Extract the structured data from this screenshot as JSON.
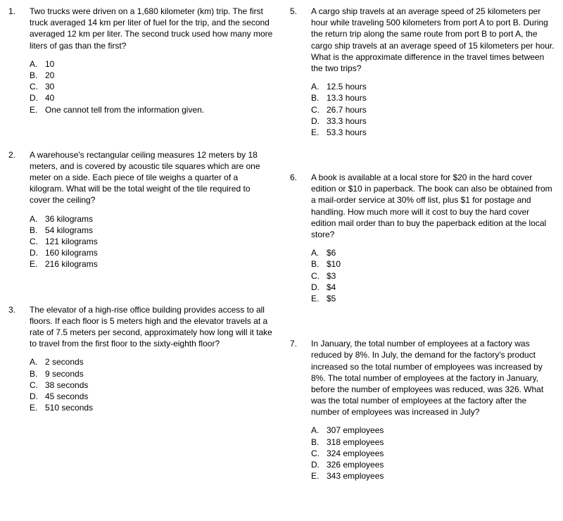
{
  "columns": [
    {
      "questions": [
        {
          "number": "1.",
          "text": "Two trucks were driven on a 1,680 kilometer (km) trip. The first truck averaged 14 km per liter of fuel for the trip, and the second averaged 12 km per liter.  The second truck used how many more liters of gas than the first?",
          "choices": [
            {
              "letter": "A.",
              "text": "10"
            },
            {
              "letter": "B.",
              "text": "20"
            },
            {
              "letter": "C.",
              "text": "30"
            },
            {
              "letter": "D.",
              "text": "40"
            },
            {
              "letter": "E.",
              "text": "One cannot tell from the information given."
            }
          ]
        },
        {
          "number": "2.",
          "text": "A warehouse's rectangular ceiling measures 12 meters by 18 meters, and is covered by acoustic tile squares which are one meter on a side.  Each piece of tile weighs a quarter of a kilogram.  What will be the total weight of the tile required to cover the ceiling?",
          "choices": [
            {
              "letter": "A.",
              "text": "36 kilograms"
            },
            {
              "letter": "B.",
              "text": "54 kilograms"
            },
            {
              "letter": "C.",
              "text": "121 kilograms"
            },
            {
              "letter": "D.",
              "text": "160 kilograms"
            },
            {
              "letter": "E.",
              "text": "216 kilograms"
            }
          ]
        },
        {
          "number": "3.",
          "text": "The elevator of a high-rise office building provides access to all floors.  If each floor is 5 meters high and the elevator travels at a rate of 7.5 meters per second, approximately how long will it take to travel from the first floor to the sixty-eighth floor?",
          "choices": [
            {
              "letter": "A.",
              "text": "2 seconds"
            },
            {
              "letter": "B.",
              "text": "9 seconds"
            },
            {
              "letter": "C.",
              "text": "38 seconds"
            },
            {
              "letter": "D.",
              "text": "45 seconds"
            },
            {
              "letter": "E.",
              "text": "510 seconds"
            }
          ]
        }
      ]
    },
    {
      "questions": [
        {
          "number": "5.",
          "text": "A cargo ship travels at an average speed of 25 kilometers per hour while traveling 500 kilometers from port A to port B. During the return trip along the same route from port B to port A, the cargo ship travels at an average speed of 15 kilometers per hour. What is the approximate difference in the travel times between the two trips?",
          "choices": [
            {
              "letter": "A.",
              "text": "12.5 hours"
            },
            {
              "letter": "B.",
              "text": "13.3 hours"
            },
            {
              "letter": "C.",
              "text": "26.7 hours"
            },
            {
              "letter": "D.",
              "text": "33.3 hours"
            },
            {
              "letter": "E.",
              "text": "53.3 hours"
            }
          ]
        },
        {
          "number": "6.",
          "text": "A book is available at a local store for $20 in the hard cover edition or $10 in paperback.  The book can also be obtained from a mail-order service at 30% off list, plus $1 for postage and handling.  How much more will it cost to buy the hard cover edition mail order than to buy the paperback edition at the local store?",
          "choices": [
            {
              "letter": "A.",
              "text": "$6"
            },
            {
              "letter": "B.",
              "text": "$10"
            },
            {
              "letter": "C.",
              "text": "$3"
            },
            {
              "letter": "D.",
              "text": "$4"
            },
            {
              "letter": "E.",
              "text": "$5"
            }
          ]
        },
        {
          "number": "7.",
          "text": "In January, the total number of employees at a factory was reduced by 8%. In July, the demand for the factory's product increased so the total number of employees was increased by 8%. The total number of employees at the factory in January, before the number of employees was reduced, was 326. What was the total number of employees at the factory after the number of employees was increased in July?",
          "choices": [
            {
              "letter": "A.",
              "text": "307 employees"
            },
            {
              "letter": "B.",
              "text": "318 employees"
            },
            {
              "letter": "C.",
              "text": "324 employees"
            },
            {
              "letter": "D.",
              "text": "326 employees"
            },
            {
              "letter": "E.",
              "text": "343 employees"
            }
          ]
        }
      ]
    }
  ]
}
